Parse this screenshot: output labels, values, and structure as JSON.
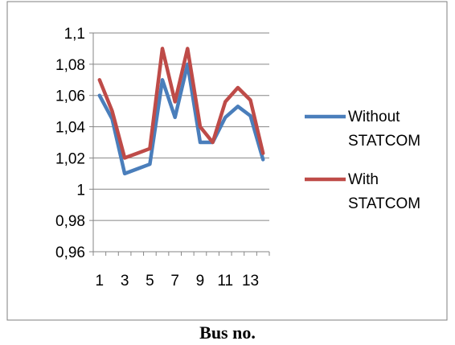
{
  "chart_data": {
    "type": "line",
    "x": [
      1,
      2,
      3,
      4,
      5,
      6,
      7,
      8,
      9,
      10,
      11,
      12,
      13,
      14
    ],
    "x_tick_labels": [
      "1",
      "3",
      "5",
      "7",
      "9",
      "11",
      "13"
    ],
    "y_tick_labels": [
      "0,96",
      "0,98",
      "1",
      "1,02",
      "1,04",
      "1,06",
      "1,08",
      "1,1"
    ],
    "ylim": [
      0.96,
      1.1
    ],
    "ystep": 0.02,
    "grid": "horizontal",
    "legend_position": "right",
    "series": [
      {
        "name": "Without STATCOM",
        "legend_lines": [
          "Without",
          "STATCOM"
        ],
        "color": "#4a7ebb",
        "values": [
          1.06,
          1.045,
          1.01,
          1.013,
          1.016,
          1.07,
          1.046,
          1.08,
          1.03,
          1.03,
          1.046,
          1.053,
          1.047,
          1.019
        ]
      },
      {
        "name": "With STATCOM",
        "legend_lines": [
          "With",
          "STATCOM"
        ],
        "color": "#be4b48",
        "values": [
          1.07,
          1.05,
          1.02,
          1.023,
          1.026,
          1.09,
          1.056,
          1.09,
          1.04,
          1.03,
          1.056,
          1.065,
          1.057,
          1.023
        ]
      }
    ]
  },
  "x_caption": "Bus no."
}
